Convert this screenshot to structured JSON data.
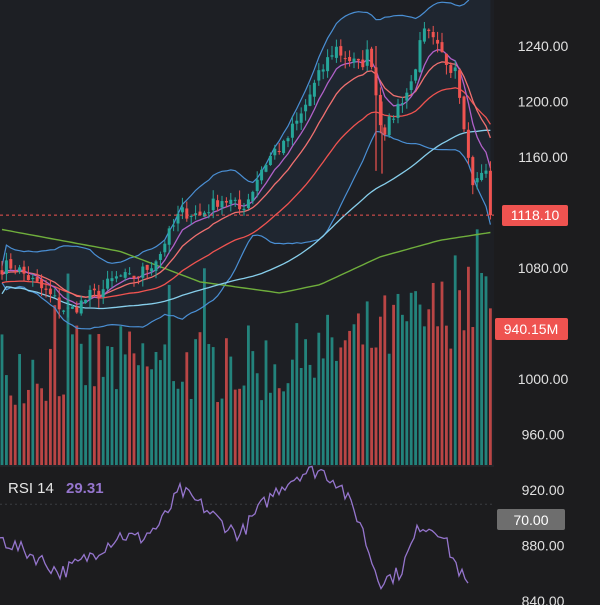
{
  "colors": {
    "background": "#1c1c1e",
    "up": "#26a69a",
    "down": "#ef5350",
    "ema_fast": "#b061c9",
    "ema_mid": "#f07070",
    "ema_slow": "#ef5350",
    "sma_50": "#87ceeb",
    "sma_200": "#6fae3c",
    "bollinger": "#4a8fd4",
    "rsi": "#9575cd",
    "axis_text": "#e0e0e0",
    "last_price_tag": "#ef5350",
    "rsi_level_tag": "#6e6e6e"
  },
  "price_axis": {
    "labels": [
      "1240.00",
      "1200.00",
      "1160.00",
      "1080.00",
      "1000.00",
      "960.00",
      "920.00",
      "880.00",
      "840.00"
    ],
    "values": [
      1240,
      1200,
      1160,
      1080,
      1000,
      960,
      920,
      880,
      840
    ]
  },
  "last_price": {
    "label": "1118.10",
    "value": 1118.1
  },
  "volume_tag": {
    "label": "940.15M"
  },
  "rsi_panel": {
    "name": "RSI 14",
    "value": "29.31",
    "level_label": "70.00"
  },
  "chart_data": [
    {
      "type": "candlestick",
      "title": "",
      "ylim": [
        844,
        1258
      ],
      "y_ticks": [
        1240,
        1200,
        1160,
        1080,
        1000,
        960,
        920,
        880,
        840
      ],
      "price_path": {
        "x": [
          0,
          10,
          20,
          30,
          40,
          50,
          55,
          60,
          65,
          70,
          80,
          90,
          100,
          110,
          120,
          130,
          140,
          150,
          160,
          165,
          170,
          175,
          180,
          190,
          200,
          210,
          220,
          230,
          240,
          250,
          260,
          270,
          275,
          285,
          290,
          300,
          310,
          320,
          330,
          335,
          340,
          350,
          360,
          370,
          375,
          380,
          385,
          390,
          400,
          410,
          420,
          425,
          430,
          440,
          450,
          455,
          460,
          465,
          470,
          475,
          480,
          485,
          488,
          490,
          492
        ],
        "y": [
          1080,
          1082,
          1078,
          1072,
          1066,
          1060,
          1057,
          1052,
          1050,
          1049,
          1054,
          1060,
          1062,
          1070,
          1074,
          1072,
          1076,
          1082,
          1090,
          1100,
          1105,
          1112,
          1120,
          1120,
          1118,
          1124,
          1130,
          1128,
          1122,
          1132,
          1150,
          1160,
          1165,
          1168,
          1178,
          1188,
          1205,
          1220,
          1233,
          1240,
          1235,
          1230,
          1225,
          1238,
          1210,
          1187,
          1180,
          1185,
          1200,
          1210,
          1240,
          1250,
          1246,
          1235,
          1225,
          1228,
          1205,
          1180,
          1148,
          1138,
          1148,
          1150,
          1145,
          1130,
          1118
        ]
      },
      "indicator_overlays": [
        "EMA (purple)",
        "EMA (pink)",
        "EMA (red)",
        "SMA (light blue)",
        "SMA (green)",
        "Bollinger Bands (blue)"
      ],
      "last_price": 1118.1,
      "last_volume": "940.15M",
      "grid": false
    },
    {
      "type": "line",
      "title": "RSI 14",
      "ylim": [
        0,
        100
      ],
      "levels": [
        70
      ],
      "last_value": 29.31,
      "series": [
        {
          "x": [
            0,
            20,
            40,
            60,
            80,
            100,
            120,
            140,
            160,
            180,
            200,
            220,
            240,
            260,
            280,
            300,
            320,
            340,
            350,
            360,
            370,
            380,
            400,
            420,
            440,
            455,
            465,
            470
          ],
          "values": [
            50,
            44,
            38,
            30,
            36,
            44,
            52,
            50,
            58,
            78,
            70,
            60,
            52,
            68,
            80,
            88,
            90,
            82,
            70,
            60,
            40,
            25,
            30,
            58,
            55,
            36,
            25,
            20
          ]
        }
      ]
    }
  ]
}
